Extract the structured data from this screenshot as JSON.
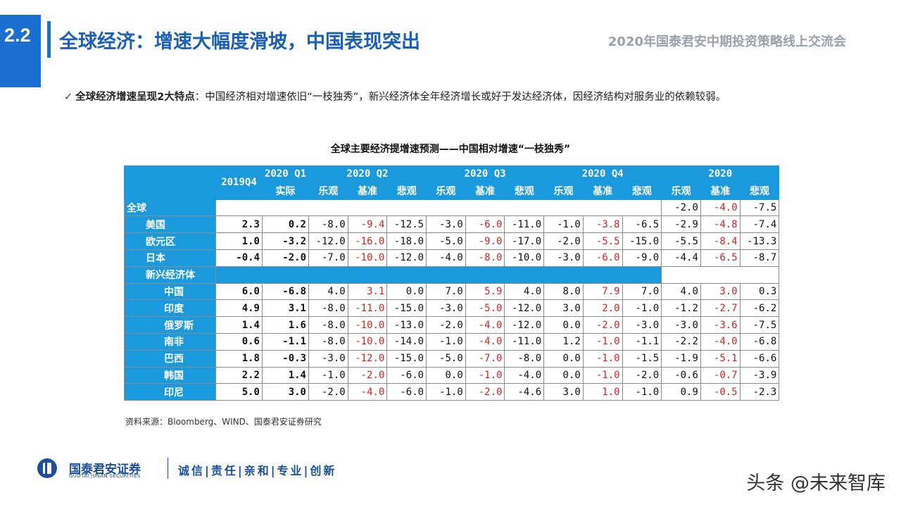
{
  "header": {
    "section_number": "2.2",
    "title": "全球经济：增速大幅度滑坡，中国表现突出",
    "event": "2020年国泰君安中期投资策略线上交流会"
  },
  "bullet": {
    "check": "✓",
    "bold_text": "全球经济增速呈现2大特点",
    "text": "：中国经济相对增速依旧“一枝独秀”，新兴经济体全年经济增长或好于发达经济体，因经济结构对服务业的依赖较弱。"
  },
  "table": {
    "title": "全球主要经济提增速预测——中国相对增速“一枝独秀”",
    "col_2019q4": "2019Q4",
    "col_2020q1": "2020 Q1",
    "col_2020q1_sub": "实际",
    "groups": [
      "2020 Q2",
      "2020 Q3",
      "2020 Q4",
      "2020"
    ],
    "scenarios": [
      "乐观",
      "基准",
      "悲观"
    ],
    "global_label": "全球",
    "global_row": [
      "-2.0",
      "-4.0",
      "-7.5"
    ],
    "emerging_label": "新兴经济体",
    "developed": [
      {
        "name": "美国",
        "q4": "2.3",
        "q1": "0.2",
        "v": [
          "-8.0",
          "-9.4",
          "-12.5",
          "-3.0",
          "-6.0",
          "-11.0",
          "-1.0",
          "-3.8",
          "-6.5",
          "-2.9",
          "-4.8",
          "-7.4"
        ]
      },
      {
        "name": "欧元区",
        "q4": "1.0",
        "q1": "-3.2",
        "v": [
          "-12.0",
          "-16.0",
          "-18.0",
          "-5.0",
          "-9.0",
          "-17.0",
          "-2.0",
          "-5.5",
          "-15.0",
          "-5.5",
          "-8.4",
          "-13.3"
        ]
      },
      {
        "name": "日本",
        "q4": "-0.4",
        "q1": "-2.0",
        "v": [
          "-7.0",
          "-10.0",
          "-12.0",
          "-4.0",
          "-8.0",
          "-10.0",
          "-3.0",
          "-6.0",
          "-9.0",
          "-4.4",
          "-6.5",
          "-8.7"
        ]
      }
    ],
    "emerging": [
      {
        "name": "中国",
        "q4": "6.0",
        "q1": "-6.8",
        "v": [
          "4.0",
          "3.1",
          "0.0",
          "7.0",
          "5.9",
          "4.0",
          "8.0",
          "7.9",
          "7.0",
          "4.0",
          "3.0",
          "0.3"
        ]
      },
      {
        "name": "印度",
        "q4": "4.9",
        "q1": "3.1",
        "v": [
          "-8.0",
          "-11.0",
          "-15.0",
          "-3.0",
          "-5.0",
          "-12.0",
          "3.0",
          "2.0",
          "-1.0",
          "-1.2",
          "-2.7",
          "-6.2"
        ]
      },
      {
        "name": "俄罗斯",
        "q4": "1.4",
        "q1": "1.6",
        "v": [
          "-8.0",
          "-10.0",
          "-13.0",
          "-2.0",
          "-4.0",
          "-12.0",
          "0.0",
          "-2.0",
          "-3.0",
          "-3.0",
          "-3.6",
          "-7.5"
        ]
      },
      {
        "name": "南非",
        "q4": "0.6",
        "q1": "-1.1",
        "v": [
          "-8.0",
          "-10.0",
          "-14.0",
          "-1.0",
          "-4.0",
          "-11.0",
          "1.2",
          "-1.0",
          "-1.1",
          "-2.2",
          "-4.0",
          "-6.8"
        ]
      },
      {
        "name": "巴西",
        "q4": "1.8",
        "q1": "-0.3",
        "v": [
          "-3.0",
          "-12.0",
          "-15.0",
          "-5.0",
          "-7.0",
          "-8.0",
          "0.0",
          "-1.0",
          "-1.5",
          "-1.9",
          "-5.1",
          "-6.6"
        ]
      },
      {
        "name": "韩国",
        "q4": "2.2",
        "q1": "1.4",
        "v": [
          "-1.0",
          "-2.0",
          "-6.0",
          "0.0",
          "-1.0",
          "-4.0",
          "0.0",
          "-1.0",
          "-2.0",
          "-0.6",
          "-0.7",
          "-3.9"
        ]
      },
      {
        "name": "印尼",
        "q4": "5.0",
        "q1": "3.0",
        "v": [
          "-2.0",
          "-4.0",
          "-6.0",
          "-1.0",
          "-2.0",
          "-4.6",
          "3.0",
          "1.0",
          "-1.0",
          "0.9",
          "-0.5",
          "-2.3"
        ]
      }
    ],
    "source": "资料来源：Bloomberg、WIND、国泰君安证券研究",
    "colors": {
      "header": "#1a99dd",
      "baseline": "#e02020"
    }
  },
  "footer": {
    "logo_cn": "国泰君安证券",
    "logo_en": "GUOTAI JUNAN SECURITIES",
    "slogan": "诚信|责任|亲和|专业|创新",
    "watermark": "头条 @未来智库"
  }
}
